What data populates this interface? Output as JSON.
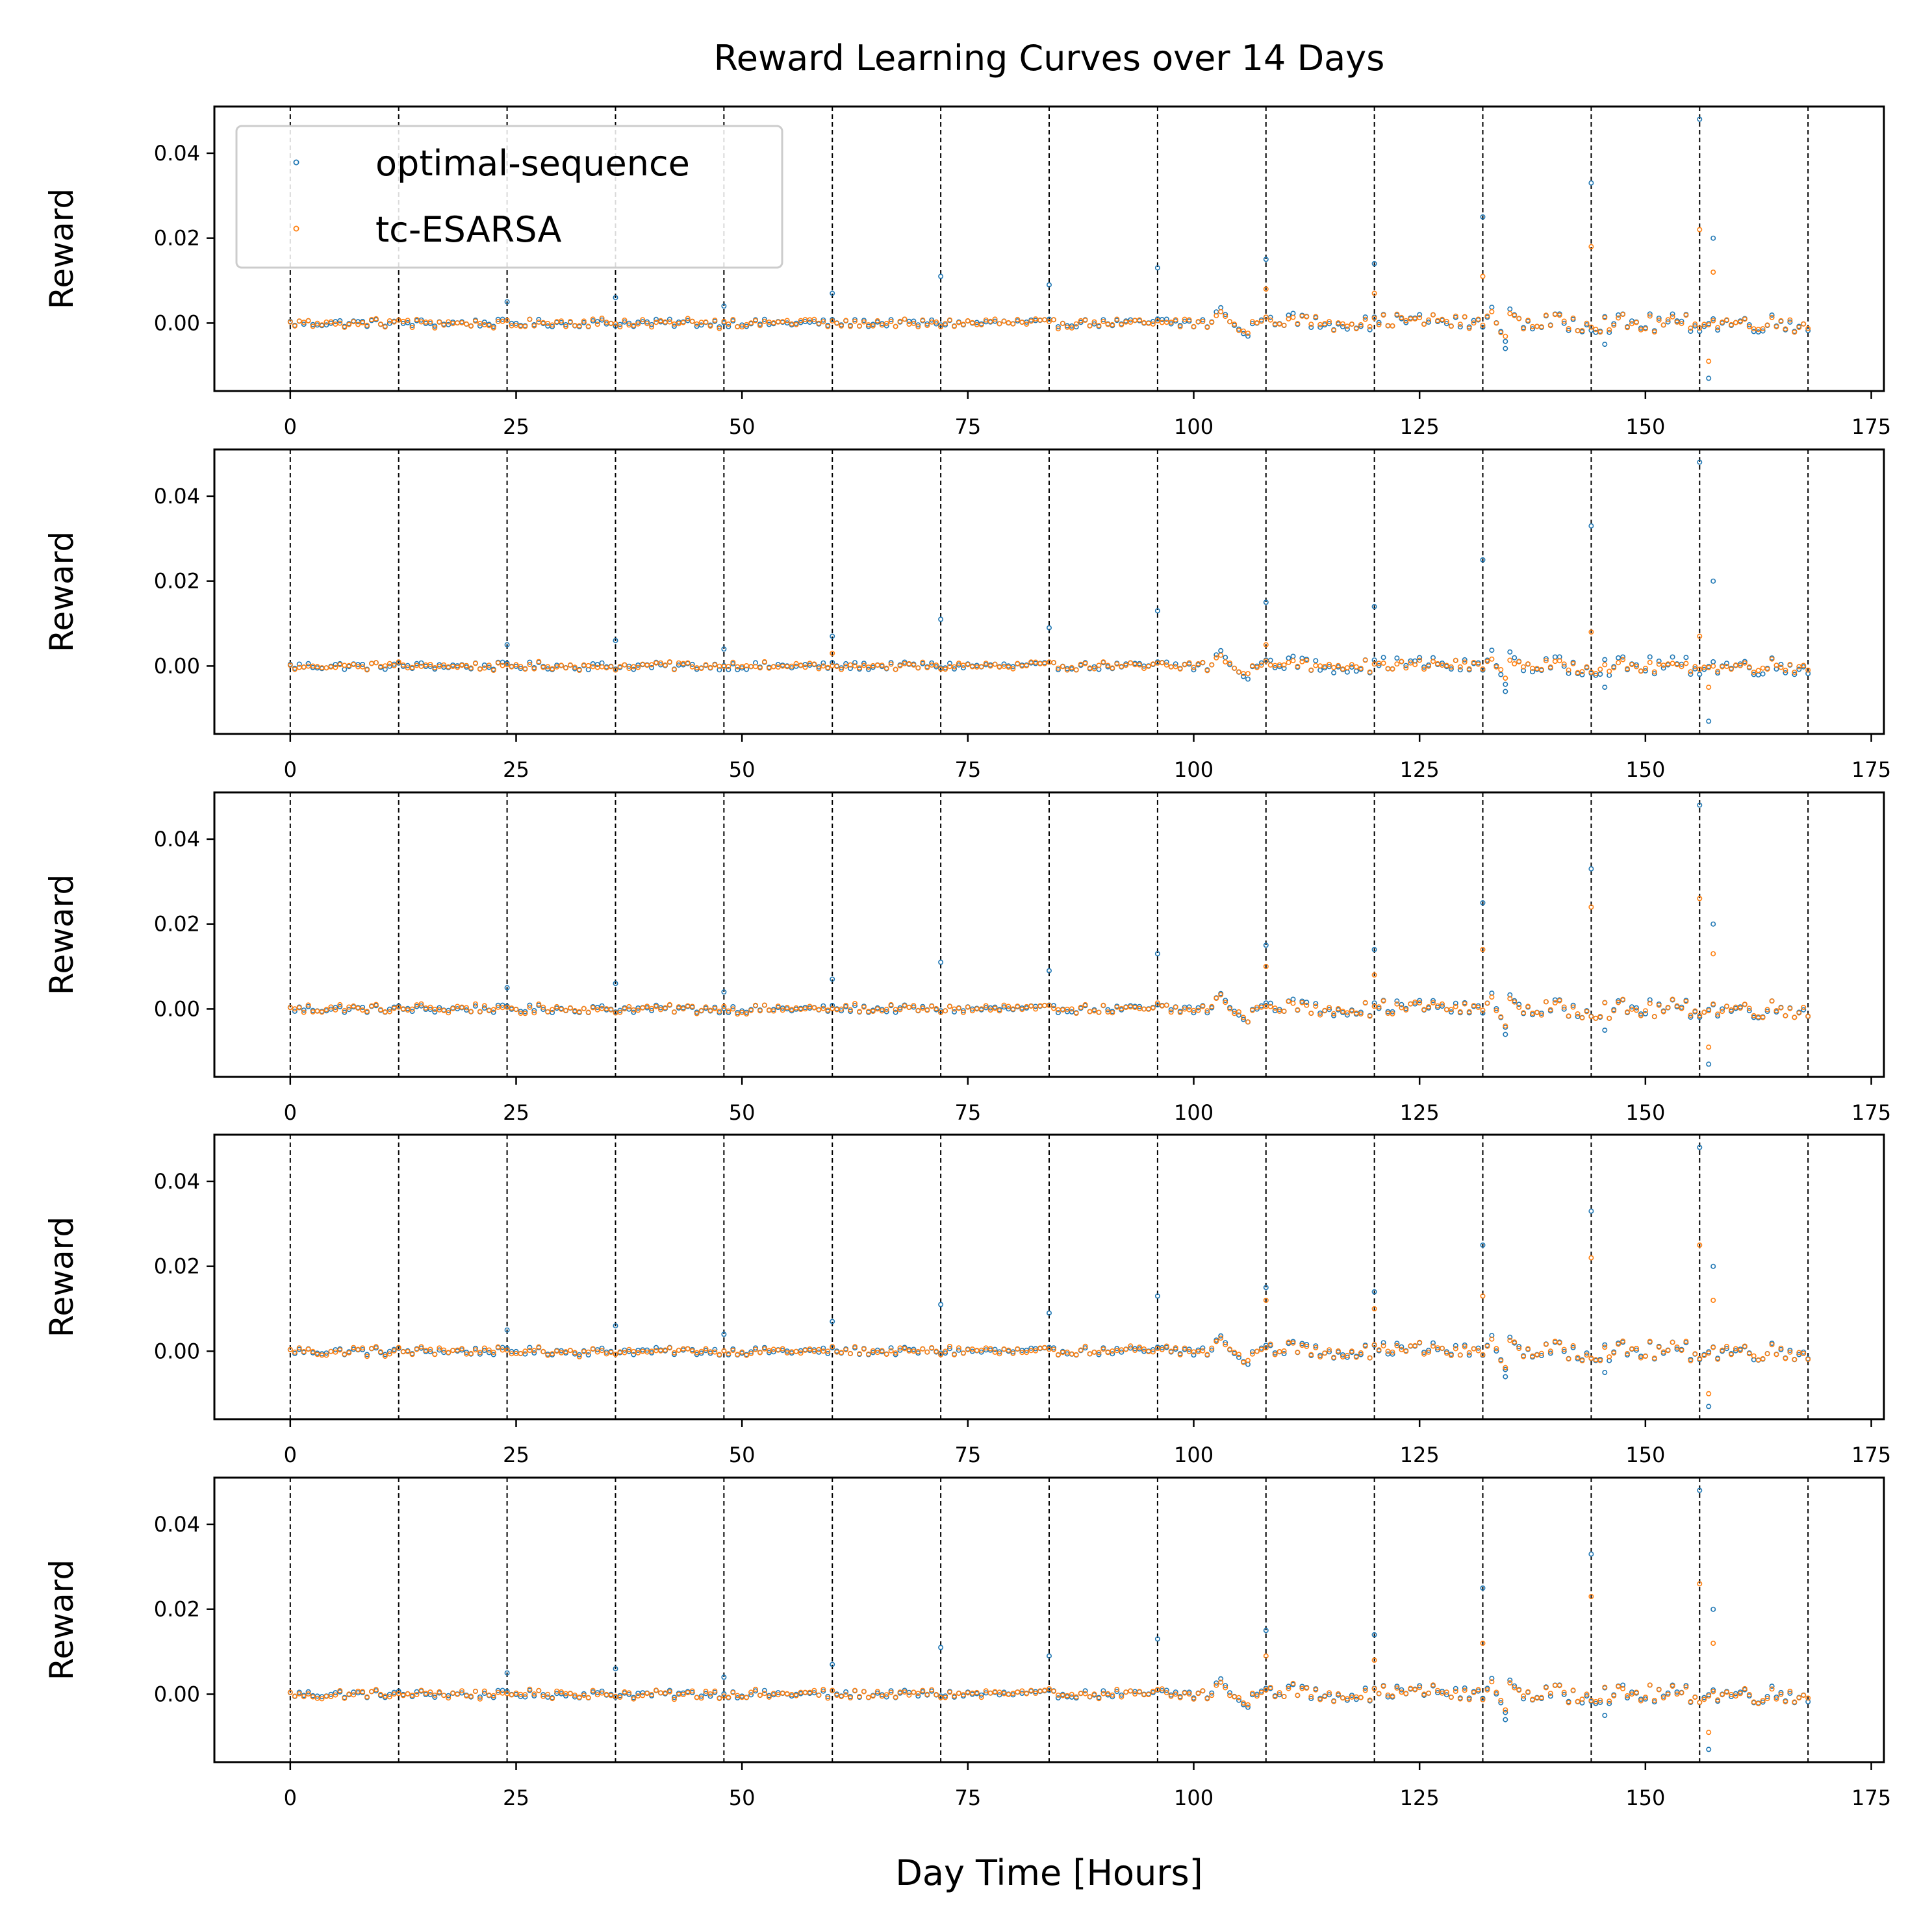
{
  "chart_data": {
    "type": "scatter",
    "title": "Reward Learning Curves over 14 Days",
    "xlabel": "Day Time [Hours]",
    "ylabel": "Reward",
    "xlim": [
      -8.4,
      176.4
    ],
    "ylim": [
      -0.016,
      0.051
    ],
    "xticks": [
      0,
      25,
      50,
      75,
      100,
      125,
      150,
      175
    ],
    "xtick_labels": [
      "0",
      "25",
      "50",
      "75",
      "100",
      "125",
      "150",
      "175"
    ],
    "yticks": [
      0.0,
      0.02,
      0.04
    ],
    "ytick_labels": [
      "0.00",
      "0.02",
      "0.04"
    ],
    "day_boundaries": [
      0,
      12,
      24,
      36,
      48,
      60,
      72,
      84,
      96,
      108,
      120,
      132,
      144,
      156,
      168
    ],
    "grid": false,
    "legend": {
      "placement": "top-left",
      "panel": 1
    },
    "x_range": [
      0,
      168
    ],
    "x_step": 0.5,
    "panels": 5,
    "series": [
      {
        "name": "optimal-sequence",
        "color": "#1f77b4",
        "spikes": [
          {
            "x": 24,
            "y": 0.005
          },
          {
            "x": 36,
            "y": 0.006
          },
          {
            "x": 48,
            "y": 0.004
          },
          {
            "x": 60,
            "y": 0.007
          },
          {
            "x": 72,
            "y": 0.011
          },
          {
            "x": 84,
            "y": 0.009
          },
          {
            "x": 96,
            "y": 0.013
          },
          {
            "x": 108,
            "y": 0.015
          },
          {
            "x": 120,
            "y": 0.014
          },
          {
            "x": 132,
            "y": 0.025
          },
          {
            "x": 144,
            "y": 0.033
          },
          {
            "x": 156,
            "y": 0.048
          },
          {
            "x": 157.5,
            "y": 0.02
          },
          {
            "x": 134.5,
            "y": -0.006
          },
          {
            "x": 145.5,
            "y": -0.005
          },
          {
            "x": 157,
            "y": -0.013
          }
        ]
      },
      {
        "name": "tc-ESARSA",
        "color": "#ff7f0e",
        "spikes_by_panel": [
          [
            {
              "x": 108,
              "y": 0.008
            },
            {
              "x": 120,
              "y": 0.007
            },
            {
              "x": 132,
              "y": 0.011
            },
            {
              "x": 144,
              "y": 0.018
            },
            {
              "x": 156,
              "y": 0.022
            },
            {
              "x": 157.5,
              "y": 0.012
            },
            {
              "x": 157,
              "y": -0.009
            }
          ],
          [
            {
              "x": 60,
              "y": 0.003
            },
            {
              "x": 108,
              "y": 0.005
            },
            {
              "x": 144,
              "y": 0.008
            },
            {
              "x": 156,
              "y": 0.007
            },
            {
              "x": 157,
              "y": -0.005
            }
          ],
          [
            {
              "x": 108,
              "y": 0.01
            },
            {
              "x": 120,
              "y": 0.008
            },
            {
              "x": 132,
              "y": 0.014
            },
            {
              "x": 144,
              "y": 0.024
            },
            {
              "x": 156,
              "y": 0.026
            },
            {
              "x": 157.5,
              "y": 0.013
            },
            {
              "x": 157,
              "y": -0.009
            }
          ],
          [
            {
              "x": 108,
              "y": 0.012
            },
            {
              "x": 120,
              "y": 0.01
            },
            {
              "x": 132,
              "y": 0.013
            },
            {
              "x": 144,
              "y": 0.022
            },
            {
              "x": 156,
              "y": 0.025
            },
            {
              "x": 157.5,
              "y": 0.012
            },
            {
              "x": 157,
              "y": -0.01
            }
          ],
          [
            {
              "x": 108,
              "y": 0.009
            },
            {
              "x": 120,
              "y": 0.008
            },
            {
              "x": 132,
              "y": 0.012
            },
            {
              "x": 144,
              "y": 0.023
            },
            {
              "x": 156,
              "y": 0.026
            },
            {
              "x": 157.5,
              "y": 0.012
            },
            {
              "x": 157,
              "y": -0.009
            }
          ]
        ]
      }
    ]
  }
}
